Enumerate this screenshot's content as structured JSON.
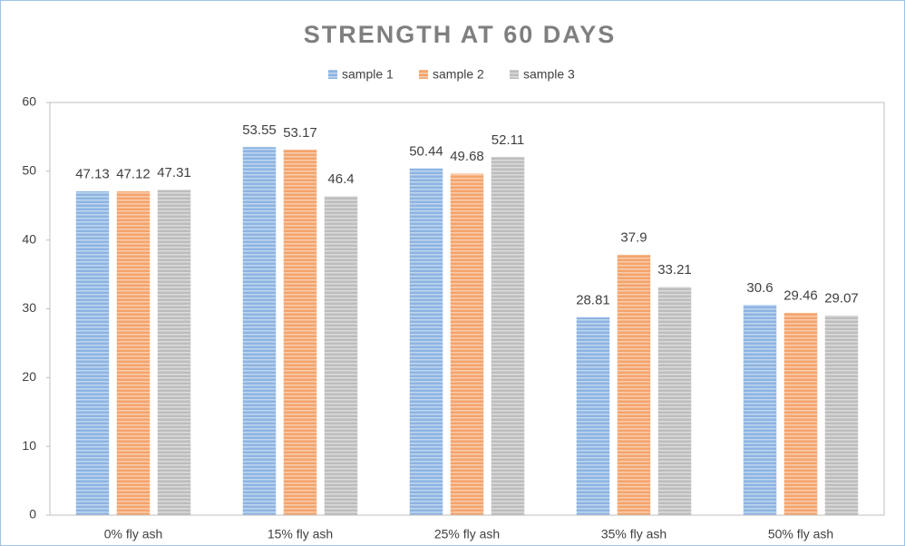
{
  "chart_data": {
    "type": "bar",
    "title": "STRENGTH AT 60 DAYS",
    "categories": [
      "0% fly ash",
      "15% fly ash",
      "25% fly ash",
      "35% fly ash",
      "50% fly ash"
    ],
    "series": [
      {
        "name": "sample 1",
        "color": "#8db4e2",
        "values": [
          47.13,
          53.55,
          50.44,
          28.81,
          30.6
        ]
      },
      {
        "name": "sample 2",
        "color": "#f4a46c",
        "values": [
          47.12,
          53.17,
          49.68,
          37.9,
          29.46
        ]
      },
      {
        "name": "sample 3",
        "color": "#bdbdbd",
        "values": [
          47.31,
          46.4,
          52.11,
          33.21,
          29.07
        ]
      }
    ],
    "ylim": [
      0,
      60
    ],
    "yticks": [
      0,
      10,
      20,
      30,
      40,
      50,
      60
    ],
    "grid": false,
    "legend": "top"
  }
}
